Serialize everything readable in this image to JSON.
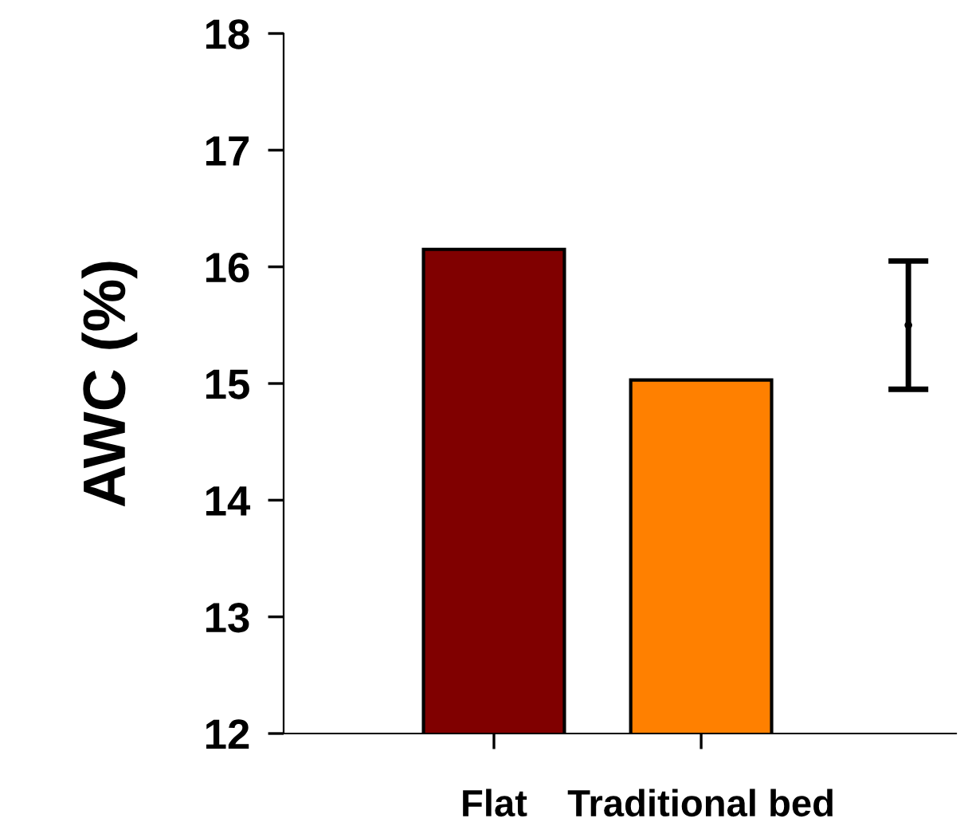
{
  "chart_data": {
    "type": "bar",
    "ylabel": "AWC (%)",
    "categories": [
      "Flat",
      "Traditional bed",
      null
    ],
    "series": [
      {
        "type": "bar",
        "values": [
          16.15,
          15.03,
          null
        ],
        "colors": [
          "#800000",
          "#ff8000",
          "#ffffff"
        ]
      },
      {
        "type": "scatter",
        "values": [
          null,
          null,
          15.5
        ],
        "errors": [
          null,
          null,
          0.55
        ],
        "color": "#000000",
        "marker": "circle"
      }
    ],
    "ylim": [
      12,
      18
    ],
    "yticks": [
      12,
      13,
      14,
      15,
      16,
      17,
      18
    ],
    "grid": false
  }
}
